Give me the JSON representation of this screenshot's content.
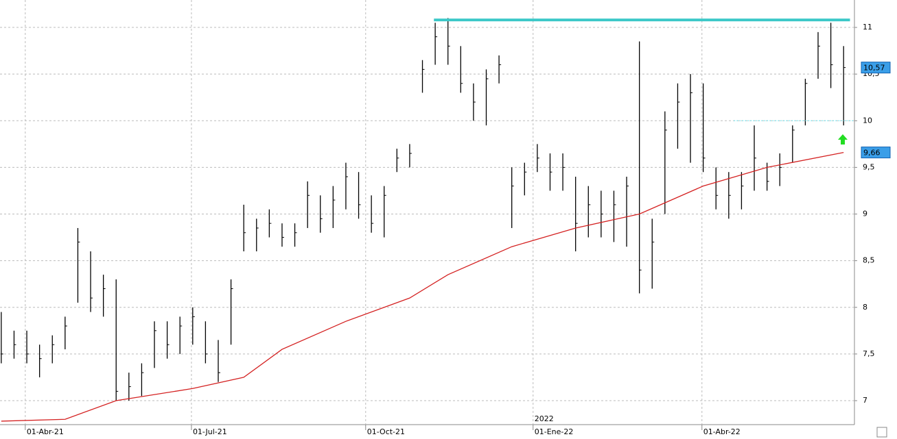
{
  "chart_data": {
    "type": "ohlc",
    "color": "#000000",
    "x": [
      0,
      1,
      2,
      3,
      4,
      5,
      6,
      7,
      8,
      9,
      10,
      11,
      12,
      13,
      14,
      15,
      16,
      17,
      18,
      19,
      20,
      21,
      22,
      23,
      24,
      25,
      26,
      27,
      28,
      29,
      30,
      31,
      32,
      33,
      34,
      35,
      36,
      37,
      38,
      39,
      40,
      41,
      42,
      43,
      44,
      45,
      46,
      47,
      48,
      49,
      50,
      51,
      52,
      53,
      54,
      55,
      56,
      57,
      58,
      59,
      60,
      61,
      62,
      63,
      64,
      65,
      66
    ],
    "high": [
      7.95,
      7.75,
      7.75,
      7.6,
      7.7,
      7.9,
      8.85,
      8.6,
      8.35,
      8.3,
      7.3,
      7.4,
      7.85,
      7.85,
      7.9,
      8.0,
      7.85,
      7.65,
      8.3,
      9.1,
      8.95,
      9.05,
      8.9,
      8.9,
      9.35,
      9.2,
      9.3,
      9.55,
      9.45,
      9.2,
      9.3,
      9.7,
      9.75,
      10.65,
      11.05,
      11.1,
      10.8,
      10.4,
      10.55,
      10.7,
      9.5,
      9.55,
      9.75,
      9.65,
      9.65,
      9.4,
      9.3,
      9.25,
      9.25,
      9.4,
      10.85,
      8.95,
      10.1,
      10.4,
      10.5,
      10.4,
      9.5,
      9.45,
      9.45,
      9.95,
      9.55,
      9.65,
      9.95,
      10.45,
      10.95,
      11.05,
      10.8
    ],
    "low": [
      7.4,
      7.45,
      7.4,
      7.25,
      7.4,
      7.55,
      8.05,
      7.95,
      7.9,
      7.0,
      7.0,
      7.05,
      7.35,
      7.45,
      7.5,
      7.6,
      7.4,
      7.2,
      7.6,
      8.6,
      8.6,
      8.75,
      8.65,
      8.65,
      8.85,
      8.8,
      8.85,
      9.05,
      8.95,
      8.8,
      8.75,
      9.45,
      9.5,
      10.3,
      10.6,
      10.6,
      10.3,
      10.0,
      9.95,
      10.4,
      8.85,
      9.2,
      9.45,
      9.25,
      9.25,
      8.6,
      8.75,
      8.75,
      8.7,
      8.65,
      8.15,
      8.2,
      9.0,
      9.7,
      9.55,
      9.45,
      9.05,
      8.95,
      9.05,
      9.25,
      9.25,
      9.3,
      9.55,
      9.95,
      10.45,
      10.35,
      9.95
    ],
    "close": [
      7.5,
      7.6,
      7.5,
      7.45,
      7.6,
      7.8,
      8.7,
      8.1,
      8.2,
      7.1,
      7.15,
      7.3,
      7.75,
      7.6,
      7.8,
      7.9,
      7.5,
      7.3,
      8.2,
      8.8,
      8.85,
      8.9,
      8.75,
      8.8,
      9.2,
      8.95,
      9.15,
      9.4,
      9.1,
      8.9,
      9.2,
      9.6,
      9.65,
      10.55,
      10.9,
      10.8,
      10.4,
      10.2,
      10.45,
      10.6,
      9.3,
      9.45,
      9.6,
      9.45,
      9.5,
      8.9,
      9.1,
      9.0,
      9.1,
      9.3,
      8.4,
      8.7,
      9.9,
      10.2,
      10.3,
      9.6,
      9.2,
      9.2,
      9.3,
      9.6,
      9.35,
      9.5,
      9.9,
      10.4,
      10.8,
      10.6,
      10.57
    ],
    "ma": {
      "color": "#d42020",
      "x": [
        0,
        5,
        9,
        15,
        19,
        22,
        27,
        32,
        35,
        40,
        45,
        50,
        55,
        60,
        66
      ],
      "values": [
        6.78,
        6.8,
        7.0,
        7.13,
        7.25,
        7.55,
        7.85,
        8.1,
        8.35,
        8.65,
        8.85,
        9.0,
        9.3,
        9.5,
        9.66
      ]
    },
    "lines": [
      {
        "value": 11.08,
        "from": 33.9,
        "to": 66.5,
        "color": "#3cc8c8",
        "style": "solid"
      },
      {
        "value": 10.0,
        "from": 57.4,
        "to": 66.8,
        "color": "#7fe8f0",
        "style": "dashed"
      }
    ],
    "price_labels": [
      {
        "value": 10.57,
        "label": "10,57"
      },
      {
        "value": 9.66,
        "label": "9,66"
      }
    ],
    "year_label": "2022",
    "year_label_x": 41.67,
    "xlim": [
      -0.1,
      66.85
    ],
    "xticks": [
      {
        "value": 1.88,
        "label": "01-Abr-21"
      },
      {
        "value": 14.9,
        "label": "01-Jul-21"
      },
      {
        "value": 28.55,
        "label": "01-Oct-21"
      },
      {
        "value": 41.67,
        "label": "01-Ene-22"
      },
      {
        "value": 54.9,
        "label": "01-Abr-22"
      }
    ],
    "ylim": [
      6.743,
      11.294
    ],
    "yticks": [
      7,
      {
        "value": 7.5,
        "label": "7,5"
      },
      8,
      {
        "value": 8.5,
        "label": "8,5"
      },
      9,
      {
        "value": 9.5,
        "label": "9,5"
      },
      10,
      {
        "value": 10.5,
        "label": "10,5"
      },
      11
    ],
    "grid": true
  }
}
